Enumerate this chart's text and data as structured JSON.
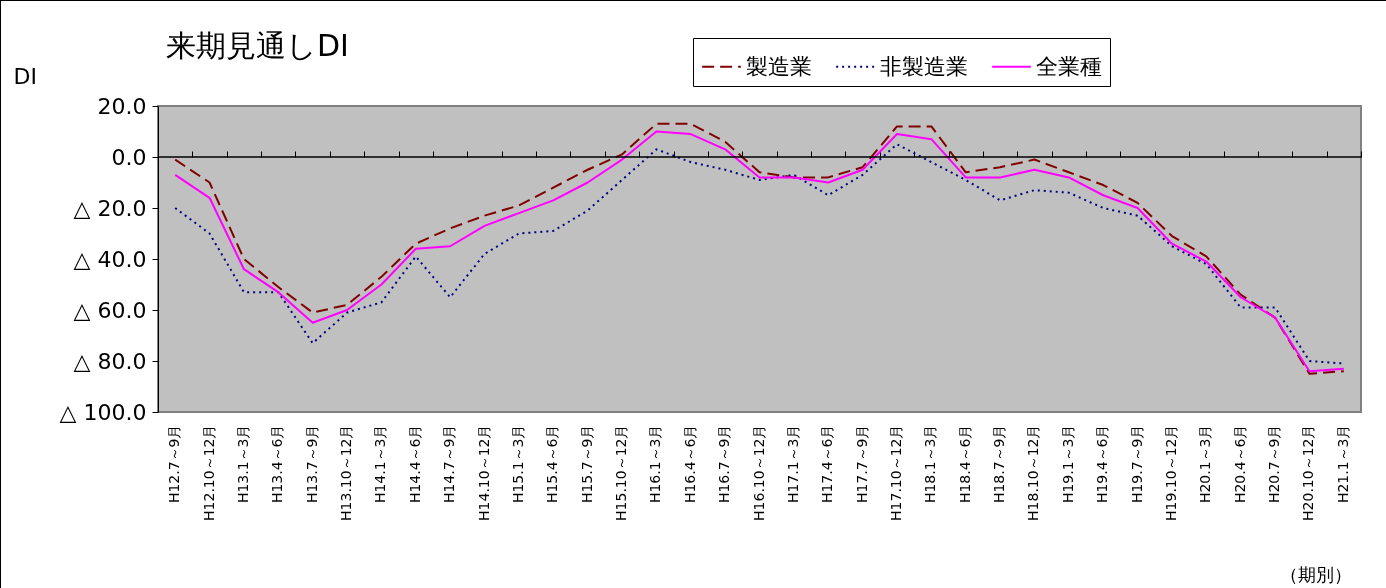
{
  "chart_data": {
    "type": "line",
    "title": "来期見通しDI",
    "ylabel": "DI",
    "xlabel": "（期別）",
    "categories": [
      "H12.7～9月",
      "H12.10～12月",
      "H13.1～3月",
      "H13.4～6月",
      "H13.7～9月",
      "H13.10～12月",
      "H14.1～3月",
      "H14.4～6月",
      "H14.7～9月",
      "H14.10～12月",
      "H15.1～3月",
      "H15.4～6月",
      "H15.7～9月",
      "H15.10～12月",
      "H16.1～3月",
      "H16.4～6月",
      "H16.7～9月",
      "H16.10～12月",
      "H17.1～3月",
      "H17.4～6月",
      "H17.7～9月",
      "H17.10～12月",
      "H18.1～3月",
      "H18.4～6月",
      "H18.7～9月",
      "H18.10～12月",
      "H19.1～3月",
      "H19.4～6月",
      "H19.7～9月",
      "H19.10～12月",
      "H20.1～3月",
      "H20.4～6月",
      "H20.7～9月",
      "H20.10～12月",
      "H21.1～3月"
    ],
    "series": [
      {
        "name": "製造業",
        "color": "#800000",
        "line_style": "dashed",
        "values": [
          -1,
          -10,
          -40,
          -51,
          -61,
          -58,
          -47,
          -34,
          -28,
          -23,
          -19,
          -12,
          -5,
          1,
          13,
          13,
          6,
          -6,
          -8,
          -8,
          -4,
          12,
          12,
          -6,
          -4,
          -1,
          -6,
          -11,
          -18,
          -31,
          -39,
          -54,
          -63,
          -85,
          -84
        ]
      },
      {
        "name": "非製造業",
        "color": "#000080",
        "line_style": "dotted",
        "values": [
          -20,
          -30,
          -53,
          -53,
          -73,
          -61,
          -57,
          -39,
          -55,
          -38,
          -30,
          -29,
          -21,
          -9,
          3,
          -2,
          -5,
          -9,
          -7,
          -15,
          -7,
          5,
          -2,
          -9,
          -17,
          -13,
          -14,
          -20,
          -23,
          -35,
          -42,
          -59,
          -59,
          -80,
          -81
        ]
      },
      {
        "name": "全業種",
        "color": "#ff00ff",
        "line_style": "solid",
        "values": [
          -7,
          -16,
          -44,
          -53,
          -65,
          -60,
          -50,
          -36,
          -35,
          -27,
          -22,
          -17,
          -10,
          -1,
          10,
          9,
          3,
          -8,
          -8,
          -10,
          -5,
          9,
          7,
          -8,
          -8,
          -5,
          -8,
          -15,
          -20,
          -34,
          -41,
          -55,
          -63,
          -84,
          -83
        ]
      }
    ],
    "ylim": [
      -100,
      20
    ],
    "yticks": [
      {
        "value": 20,
        "label": "20.0"
      },
      {
        "value": 0,
        "label": "0.0"
      },
      {
        "value": -20,
        "label": "△ 20.0"
      },
      {
        "value": -40,
        "label": "△ 40.0"
      },
      {
        "value": -60,
        "label": "△ 60.0"
      },
      {
        "value": -80,
        "label": "△ 80.0"
      },
      {
        "value": -100,
        "label": "△ 100.0"
      }
    ],
    "ref_lines": [
      {
        "axis": "y",
        "value": 0,
        "color": "#000000"
      }
    ],
    "legend": "top right",
    "grid": false
  }
}
